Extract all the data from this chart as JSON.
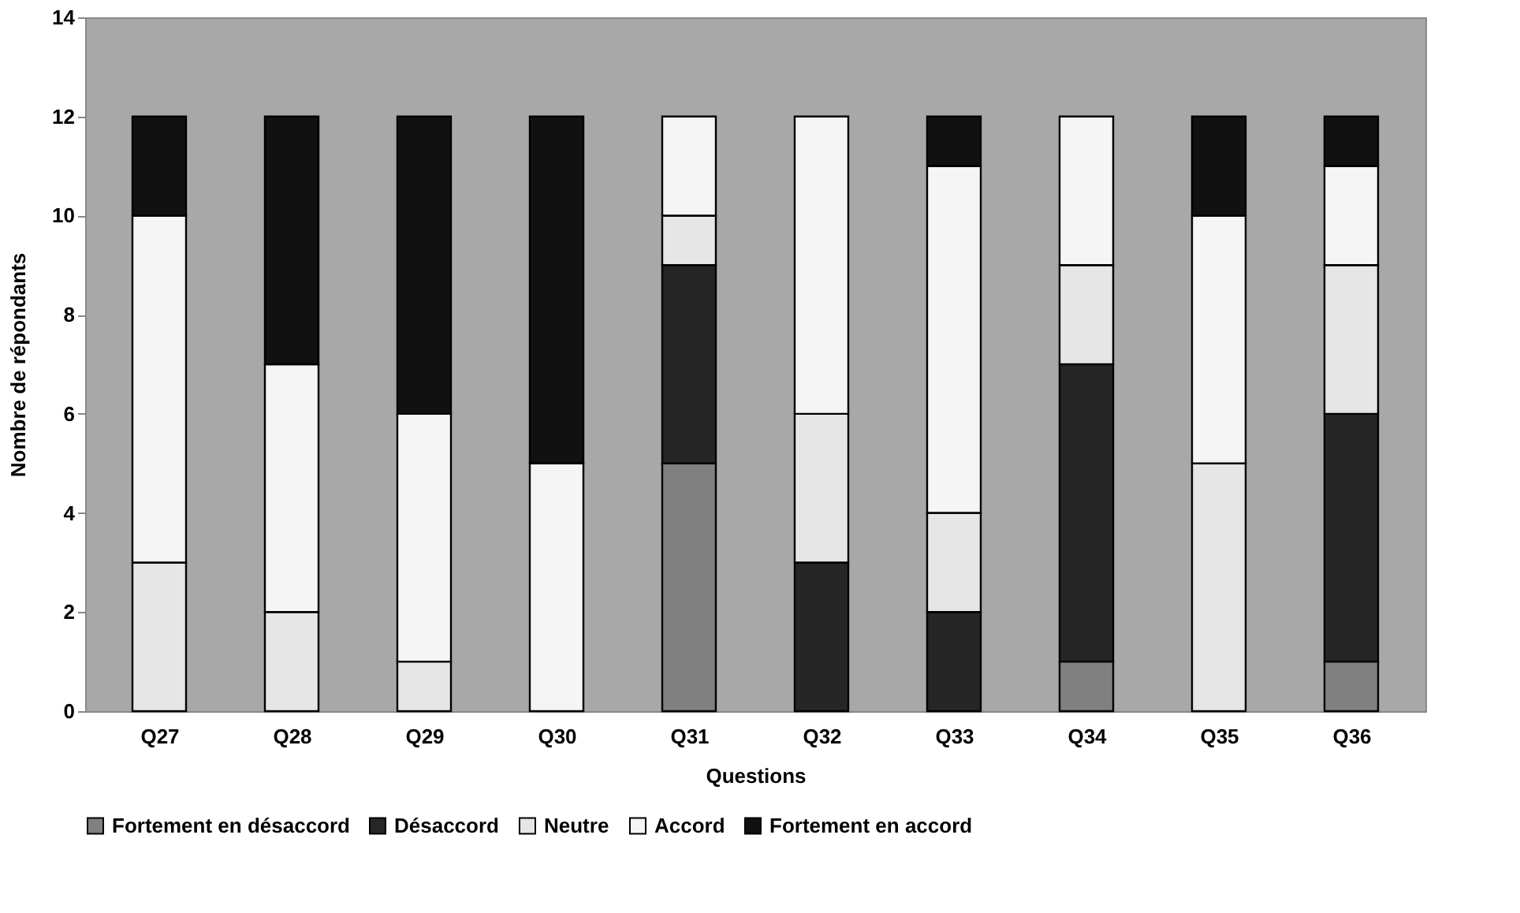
{
  "chart_data": {
    "type": "bar",
    "stacked": true,
    "xlabel": "Questions",
    "ylabel": "Nombre de répondants",
    "categories": [
      "Q27",
      "Q28",
      "Q29",
      "Q30",
      "Q31",
      "Q32",
      "Q33",
      "Q34",
      "Q35",
      "Q36"
    ],
    "ylim": [
      0,
      14
    ],
    "yticks": [
      0,
      2,
      4,
      6,
      8,
      10,
      12,
      14
    ],
    "grid": false,
    "legend": "bottom",
    "series": [
      {
        "name": "Fortement en désaccord",
        "color": "#808080",
        "values": [
          0,
          0,
          0,
          0,
          5,
          0,
          0,
          1,
          0,
          1
        ]
      },
      {
        "name": "Désaccord",
        "color": "#262626",
        "values": [
          0,
          0,
          0,
          0,
          4,
          3,
          2,
          6,
          0,
          5
        ]
      },
      {
        "name": "Neutre",
        "color": "#e6e6e6",
        "values": [
          3,
          2,
          1,
          0,
          1,
          3,
          2,
          2,
          5,
          3
        ]
      },
      {
        "name": "Accord",
        "color": "#f5f5f5",
        "values": [
          7,
          5,
          5,
          5,
          2,
          6,
          7,
          3,
          5,
          2
        ]
      },
      {
        "name": "Fortement en accord",
        "color": "#111111",
        "values": [
          2,
          5,
          6,
          7,
          0,
          0,
          1,
          0,
          2,
          1
        ]
      }
    ]
  }
}
